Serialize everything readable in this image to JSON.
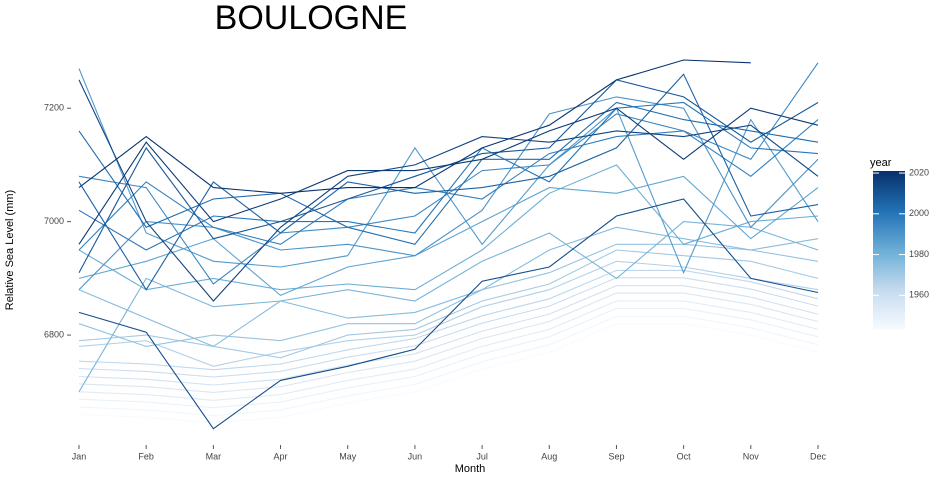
{
  "chart_data": {
    "type": "line",
    "title": "BOULOGNE",
    "x_label": "Month",
    "y_label": "Relative Sea Level (mm)",
    "categories": [
      "Jan",
      "Feb",
      "Mar",
      "Apr",
      "May",
      "Jun",
      "Jul",
      "Aug",
      "Sep",
      "Oct",
      "Nov",
      "Dec"
    ],
    "ylim": [
      6615,
      7285
    ],
    "yticks": [
      6800,
      7000,
      7200
    ],
    "grid": false,
    "colorbar": {
      "title": "year",
      "lim": [
        1943,
        2021
      ],
      "ticks": [
        1960,
        1980,
        2000,
        2020
      ],
      "colors": [
        "#f7fbff",
        "#c6dbef",
        "#6baed6",
        "#2171b5",
        "#08306b"
      ]
    },
    "series": [
      {
        "year": 1943,
        "values": [
          6660,
          6655,
          6645,
          6655,
          6680,
          6700,
          6740,
          6770,
          6820,
          6820,
          6800,
          6770
        ]
      },
      {
        "year": 1946,
        "values": [
          6673,
          6668,
          6658,
          6668,
          6693,
          6713,
          6753,
          6783,
          6833,
          6833,
          6813,
          6783
        ]
      },
      {
        "year": 1949,
        "values": [
          6687,
          6682,
          6672,
          6682,
          6707,
          6727,
          6767,
          6797,
          6847,
          6847,
          6827,
          6797
        ]
      },
      {
        "year": 1952,
        "values": [
          6700,
          6695,
          6685,
          6695,
          6720,
          6740,
          6780,
          6810,
          6860,
          6860,
          6840,
          6810
        ]
      },
      {
        "year": 1955,
        "values": [
          6714,
          6709,
          6699,
          6709,
          6734,
          6754,
          6794,
          6824,
          6874,
          6874,
          6854,
          6824
        ]
      },
      {
        "year": 1958,
        "values": [
          6727,
          6722,
          6712,
          6722,
          6747,
          6767,
          6807,
          6837,
          6887,
          6887,
          6867,
          6837
        ]
      },
      {
        "year": 1961,
        "values": [
          6741,
          6736,
          6726,
          6736,
          6761,
          6781,
          6821,
          6851,
          6901,
          6901,
          6881,
          6851
        ]
      },
      {
        "year": 1964,
        "values": [
          6754,
          6749,
          6739,
          6749,
          6774,
          6794,
          6834,
          6864,
          6914,
          6914,
          6894,
          6864
        ]
      },
      {
        "year": 1967,
        "values": [
          6780,
          6790,
          6745,
          6770,
          6790,
          6800,
          6850,
          6880,
          6930,
          6920,
          6900,
          6880
        ]
      },
      {
        "year": 1970,
        "values": [
          6790,
          6800,
          6780,
          6760,
          6800,
          6810,
          6860,
          6890,
          6950,
          6940,
          6930,
          6900
        ]
      },
      {
        "year": 1973,
        "values": [
          6820,
          6780,
          6800,
          6790,
          6820,
          6820,
          6880,
          6910,
          6960,
          6960,
          6950,
          6930
        ]
      },
      {
        "year": 1976,
        "values": [
          6880,
          6830,
          6780,
          6860,
          6830,
          6840,
          6880,
          6950,
          6990,
          6970,
          6950,
          6970
        ]
      },
      {
        "year": 1979,
        "values": [
          6700,
          6900,
          6850,
          6860,
          6880,
          6860,
          6930,
          6980,
          6900,
          7000,
          6990,
          6950
        ]
      },
      {
        "year": 1982,
        "values": [
          6950,
          6880,
          6900,
          6880,
          6890,
          6880,
          6950,
          7050,
          7100,
          6960,
          7000,
          7010
        ]
      },
      {
        "year": 1985,
        "values": [
          6900,
          6930,
          6970,
          6870,
          6920,
          6940,
          7000,
          7060,
          7050,
          7080,
          6970,
          7060
        ]
      },
      {
        "year": 1988,
        "values": [
          7270,
          6980,
          6930,
          6920,
          6940,
          7130,
          6960,
          7100,
          7200,
          6910,
          7180,
          7000
        ]
      },
      {
        "year": 1991,
        "values": [
          6880,
          7000,
          6990,
          6950,
          6960,
          6940,
          7020,
          7190,
          7220,
          7200,
          6990,
          7110
        ]
      },
      {
        "year": 1994,
        "values": [
          7080,
          7060,
          6890,
          6980,
          6990,
          7010,
          7090,
          7100,
          7190,
          7160,
          7110,
          7280
        ]
      },
      {
        "year": 1997,
        "values": [
          6950,
          7070,
          6990,
          6960,
          7040,
          7060,
          7040,
          7120,
          7150,
          7160,
          7080,
          7180
        ]
      },
      {
        "year": 2000,
        "values": [
          7020,
          6950,
          7010,
          7000,
          7000,
          6980,
          7130,
          7070,
          7200,
          7210,
          7130,
          7120
        ]
      },
      {
        "year": 2003,
        "values": [
          7160,
          6990,
          7040,
          7050,
          6990,
          6960,
          7110,
          7110,
          7210,
          7180,
          7160,
          7140
        ]
      },
      {
        "year": 2006,
        "values": [
          7070,
          6880,
          7070,
          6980,
          7070,
          7050,
          7060,
          7080,
          7130,
          7260,
          7010,
          7030
        ]
      },
      {
        "year": 2009,
        "values": [
          6910,
          7130,
          6970,
          7000,
          7040,
          7080,
          7120,
          7130,
          7250,
          7220,
          7140,
          7210
        ]
      },
      {
        "year": 2012,
        "values": [
          6840,
          6805,
          6635,
          6720,
          6745,
          6775,
          6895,
          6920,
          7010,
          7040,
          6900,
          6875
        ]
      },
      {
        "year": 2015,
        "values": [
          7250,
          7000,
          6860,
          6990,
          7080,
          7100,
          7150,
          7140,
          7160,
          7150,
          7170,
          7080
        ]
      },
      {
        "year": 2018,
        "values": [
          6960,
          7140,
          7000,
          7040,
          7090,
          7090,
          7110,
          7160,
          7200,
          7110,
          7200,
          7170
        ]
      },
      {
        "year": 2020,
        "values": [
          7060,
          7150,
          7060,
          7050,
          7060,
          7060,
          7130,
          7170,
          7250,
          7285,
          7280,
          null
        ]
      }
    ]
  }
}
